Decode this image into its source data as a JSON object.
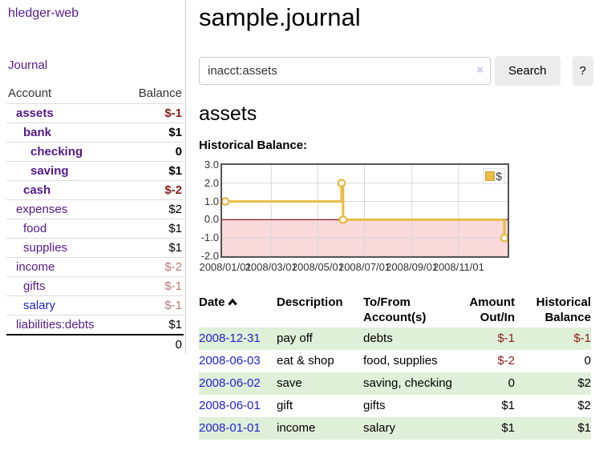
{
  "colors": {
    "link_visited_purple": "#551a8b",
    "link_blue": "#2222d2",
    "negative_strong": "#8b1b1b",
    "negative_muted": "#bd7979",
    "row_stripe_green": "#dff0d8",
    "chart_line_gold": "#e8bc45",
    "chart_negative_fill": "#f9d9da",
    "chart_zero_line": "#8b1b1b",
    "button_gray": "#ececec"
  },
  "sidebar": {
    "brand": "hledger-web",
    "journal_link": "Journal",
    "accounts_table": {
      "account_header": "Account",
      "balance_header": "Balance",
      "rows": [
        {
          "name": "assets",
          "depth": 1,
          "balance": "$-1",
          "bold": true,
          "balance_style": "neg-strong"
        },
        {
          "name": "bank",
          "depth": 2,
          "balance": "$1",
          "bold": true,
          "balance_style": ""
        },
        {
          "name": "checking",
          "depth": 3,
          "balance": "0",
          "bold": true,
          "balance_style": ""
        },
        {
          "name": "saving",
          "depth": 3,
          "balance": "$1",
          "bold": true,
          "balance_style": ""
        },
        {
          "name": "cash",
          "depth": 2,
          "balance": "$-2",
          "bold": true,
          "balance_style": "neg-strong"
        },
        {
          "name": "expenses",
          "depth": 1,
          "balance": "$2",
          "bold": false,
          "balance_style": ""
        },
        {
          "name": "food",
          "depth": 2,
          "balance": "$1",
          "bold": false,
          "balance_style": ""
        },
        {
          "name": "supplies",
          "depth": 2,
          "balance": "$1",
          "bold": false,
          "balance_style": ""
        },
        {
          "name": "income",
          "depth": 1,
          "balance": "$-2",
          "bold": false,
          "balance_style": "neg-muted"
        },
        {
          "name": "gifts",
          "depth": 2,
          "balance": "$-1",
          "bold": false,
          "balance_style": "neg-muted"
        },
        {
          "name": "salary",
          "depth": 2,
          "balance": "$-1",
          "bold": false,
          "balance_style": "neg-muted",
          "link_state": "unvisited"
        },
        {
          "name": "liabilities:debts",
          "depth": 1,
          "balance": "$1",
          "bold": false,
          "balance_style": ""
        }
      ],
      "total": "0"
    }
  },
  "main": {
    "page_title": "sample.journal",
    "search": {
      "query": "inacct:assets",
      "clear_icon": "×",
      "search_button": "Search",
      "help_button": "?"
    },
    "account_heading": "assets",
    "section_label": "Historical Balance:"
  },
  "chart_data": {
    "type": "line",
    "step": true,
    "title": "Historical Balance",
    "legend": [
      {
        "label": "$",
        "color": "#e8bc45"
      }
    ],
    "legend_position": "top-right",
    "x_type": "date",
    "points": [
      [
        "2008-01-01",
        1
      ],
      [
        "2008-06-01",
        2
      ],
      [
        "2008-06-02",
        2
      ],
      [
        "2008-06-03",
        0
      ],
      [
        "2008-12-31",
        -1
      ]
    ],
    "markers": [
      [
        "2008-01-01",
        1
      ],
      [
        "2008-06-01",
        2
      ],
      [
        "2008-06-03",
        0
      ],
      [
        "2008-12-31",
        -1
      ]
    ],
    "ylim": [
      -2,
      3
    ],
    "yticks": [
      "3.0",
      "2.0",
      "1.0",
      "0.0",
      "-1.0",
      "-2.0"
    ],
    "xticks": [
      "2008/01/01",
      "2008/03/01",
      "2008/05/01",
      "2008/07/01",
      "2008/09/01",
      "2008/11/01"
    ],
    "grid": true,
    "negative_region_fill": "#f9d9da",
    "zero_line_color": "#8b1b1b"
  },
  "register": {
    "headers": {
      "date": "Date",
      "description": "Description",
      "account": "To/From Account(s)",
      "amount": "Amount Out/In",
      "balance": "Historical Balance"
    },
    "rows": [
      {
        "date": "2008-12-31",
        "description": "pay off",
        "accounts": "debts",
        "amount": "$-1",
        "amount_neg": true,
        "balance": "$-1",
        "balance_neg": true
      },
      {
        "date": "2008-06-03",
        "description": "eat & shop",
        "accounts": "food, supplies",
        "amount": "$-2",
        "amount_neg": true,
        "balance": "0",
        "balance_neg": false
      },
      {
        "date": "2008-06-02",
        "description": "save",
        "accounts": "saving, checking",
        "amount": "0",
        "amount_neg": false,
        "balance": "$2",
        "balance_neg": false
      },
      {
        "date": "2008-06-01",
        "description": "gift",
        "accounts": "gifts",
        "amount": "$1",
        "amount_neg": false,
        "balance": "$2",
        "balance_neg": false
      },
      {
        "date": "2008-01-01",
        "description": "income",
        "accounts": "salary",
        "amount": "$1",
        "amount_neg": false,
        "balance": "$1",
        "balance_neg": false
      }
    ]
  }
}
